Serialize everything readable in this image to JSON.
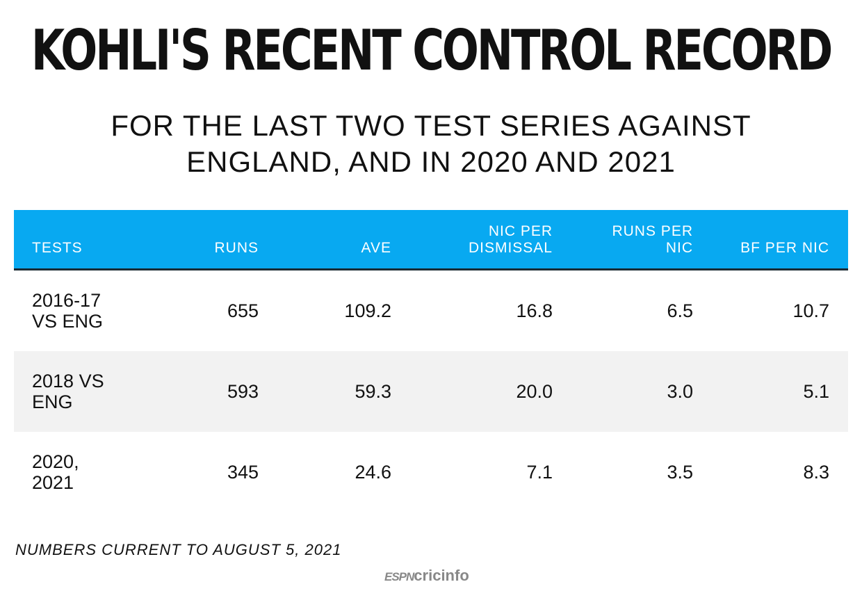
{
  "title": "KOHLI'S RECENT CONTROL RECORD",
  "subtitle_line1": "FOR THE LAST TWO TEST SERIES AGAINST",
  "subtitle_line2": "ENGLAND, AND IN 2020 AND 2021",
  "colors": {
    "header": "#08a9f1",
    "alt_row": "#f2f2f2"
  },
  "chart_data": {
    "type": "table",
    "columns": [
      {
        "l1": "",
        "l2": "TESTS"
      },
      {
        "l1": "",
        "l2": "RUNS"
      },
      {
        "l1": "",
        "l2": "AVE"
      },
      {
        "l1": "NIC PER",
        "l2": "DISMISSAL"
      },
      {
        "l1": "RUNS PER",
        "l2": "NIC"
      },
      {
        "l1": "",
        "l2": "BF PER NIC"
      }
    ],
    "rows": [
      {
        "label1": "2016-17",
        "label2": "VS ENG",
        "values": [
          "655",
          "109.2",
          "16.8",
          "6.5",
          "10.7"
        ]
      },
      {
        "label1": "2018 VS",
        "label2": "ENG",
        "values": [
          "593",
          "59.3",
          "20.0",
          "3.0",
          "5.1"
        ]
      },
      {
        "label1": "2020,",
        "label2": "2021",
        "values": [
          "345",
          "24.6",
          "7.1",
          "3.5",
          "8.3"
        ]
      }
    ]
  },
  "footnote": "NUMBERS CURRENT TO AUGUST 5, 2021",
  "logo": {
    "part1": "ESPN",
    "part2": "cricinfo"
  }
}
